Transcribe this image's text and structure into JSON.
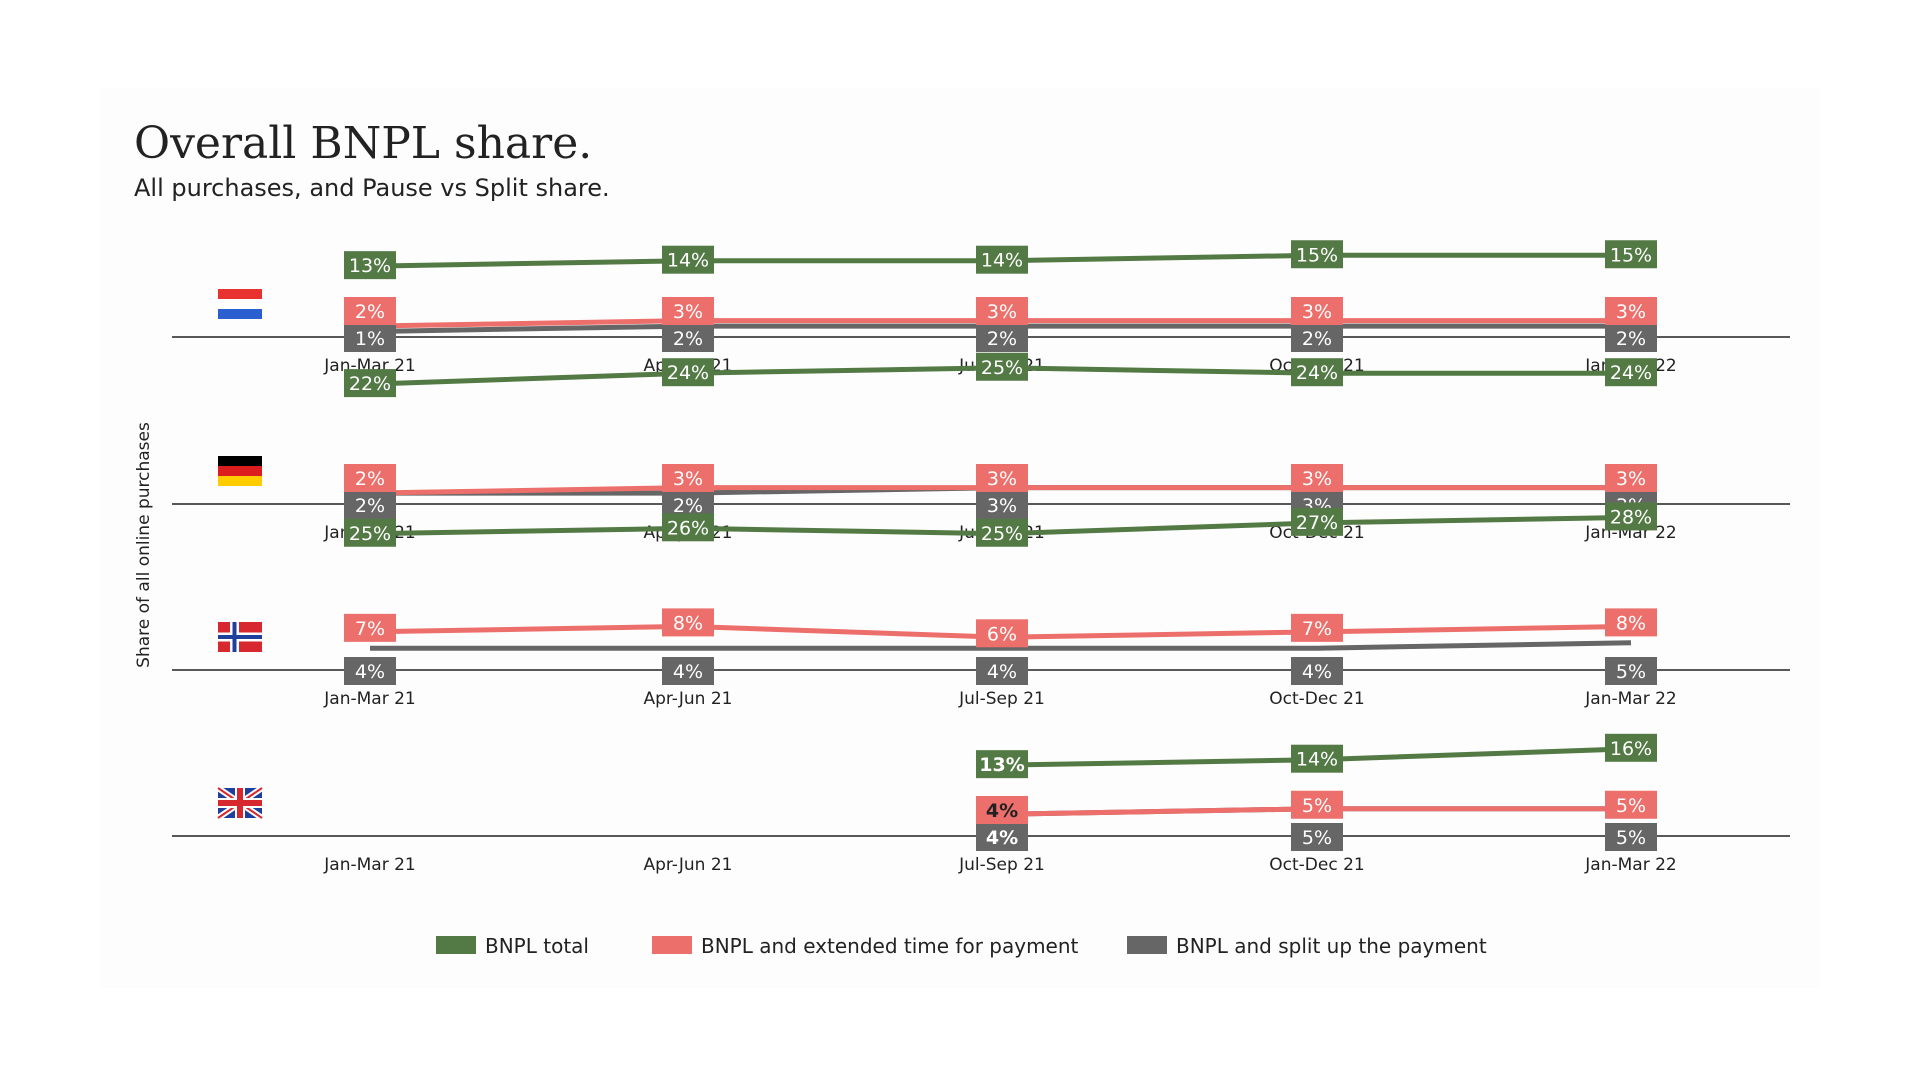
{
  "title": "Overall BNPL share.",
  "subtitle": "All purchases, and Pause vs Split share.",
  "chart_data": {
    "type": "line",
    "title": "Overall BNPL share.",
    "subtitle": "All purchases, and Pause vs Split share.",
    "ylabel": "Share of all online purchases",
    "categories": [
      "Jan-Mar 21",
      "Apr-Jun 21",
      "Jul-Sep 21",
      "Oct-Dec 21",
      "Jan-Mar 22"
    ],
    "legend": [
      {
        "name": "BNPL total",
        "color": "#537a45"
      },
      {
        "name": "BNPL and extended time for payment",
        "color": "#ec6f6c"
      },
      {
        "name": "BNPL and split up the payment",
        "color": "#666666"
      }
    ],
    "panels": [
      {
        "country": "Netherlands",
        "flag": "flag-netherlands",
        "series": [
          {
            "name": "BNPL total",
            "values": [
              13,
              14,
              14,
              15,
              15
            ]
          },
          {
            "name": "BNPL and extended time for payment",
            "values": [
              2,
              3,
              3,
              3,
              3
            ]
          },
          {
            "name": "BNPL and split up the payment",
            "values": [
              1,
              2,
              2,
              2,
              2
            ]
          }
        ]
      },
      {
        "country": "Germany",
        "flag": "flag-germany",
        "series": [
          {
            "name": "BNPL total",
            "values": [
              22,
              24,
              25,
              24,
              24
            ]
          },
          {
            "name": "BNPL and extended time for payment",
            "values": [
              2,
              3,
              3,
              3,
              3
            ]
          },
          {
            "name": "BNPL and split up the payment",
            "values": [
              2,
              2,
              3,
              3,
              3
            ]
          }
        ]
      },
      {
        "country": "Norway",
        "flag": "flag-norway",
        "series": [
          {
            "name": "BNPL total",
            "values": [
              25,
              26,
              25,
              27,
              28
            ]
          },
          {
            "name": "BNPL and extended time for payment",
            "values": [
              7,
              8,
              6,
              7,
              8
            ]
          },
          {
            "name": "BNPL and split up the payment",
            "values": [
              4,
              4,
              4,
              4,
              5
            ]
          }
        ]
      },
      {
        "country": "United Kingdom",
        "flag": "flag-uk",
        "series": [
          {
            "name": "BNPL total",
            "values": [
              null,
              null,
              13,
              14,
              16
            ]
          },
          {
            "name": "BNPL and extended time for payment",
            "values": [
              null,
              null,
              4,
              5,
              5
            ]
          },
          {
            "name": "BNPL and split up the payment",
            "values": [
              null,
              null,
              4,
              5,
              5
            ]
          }
        ]
      }
    ]
  }
}
